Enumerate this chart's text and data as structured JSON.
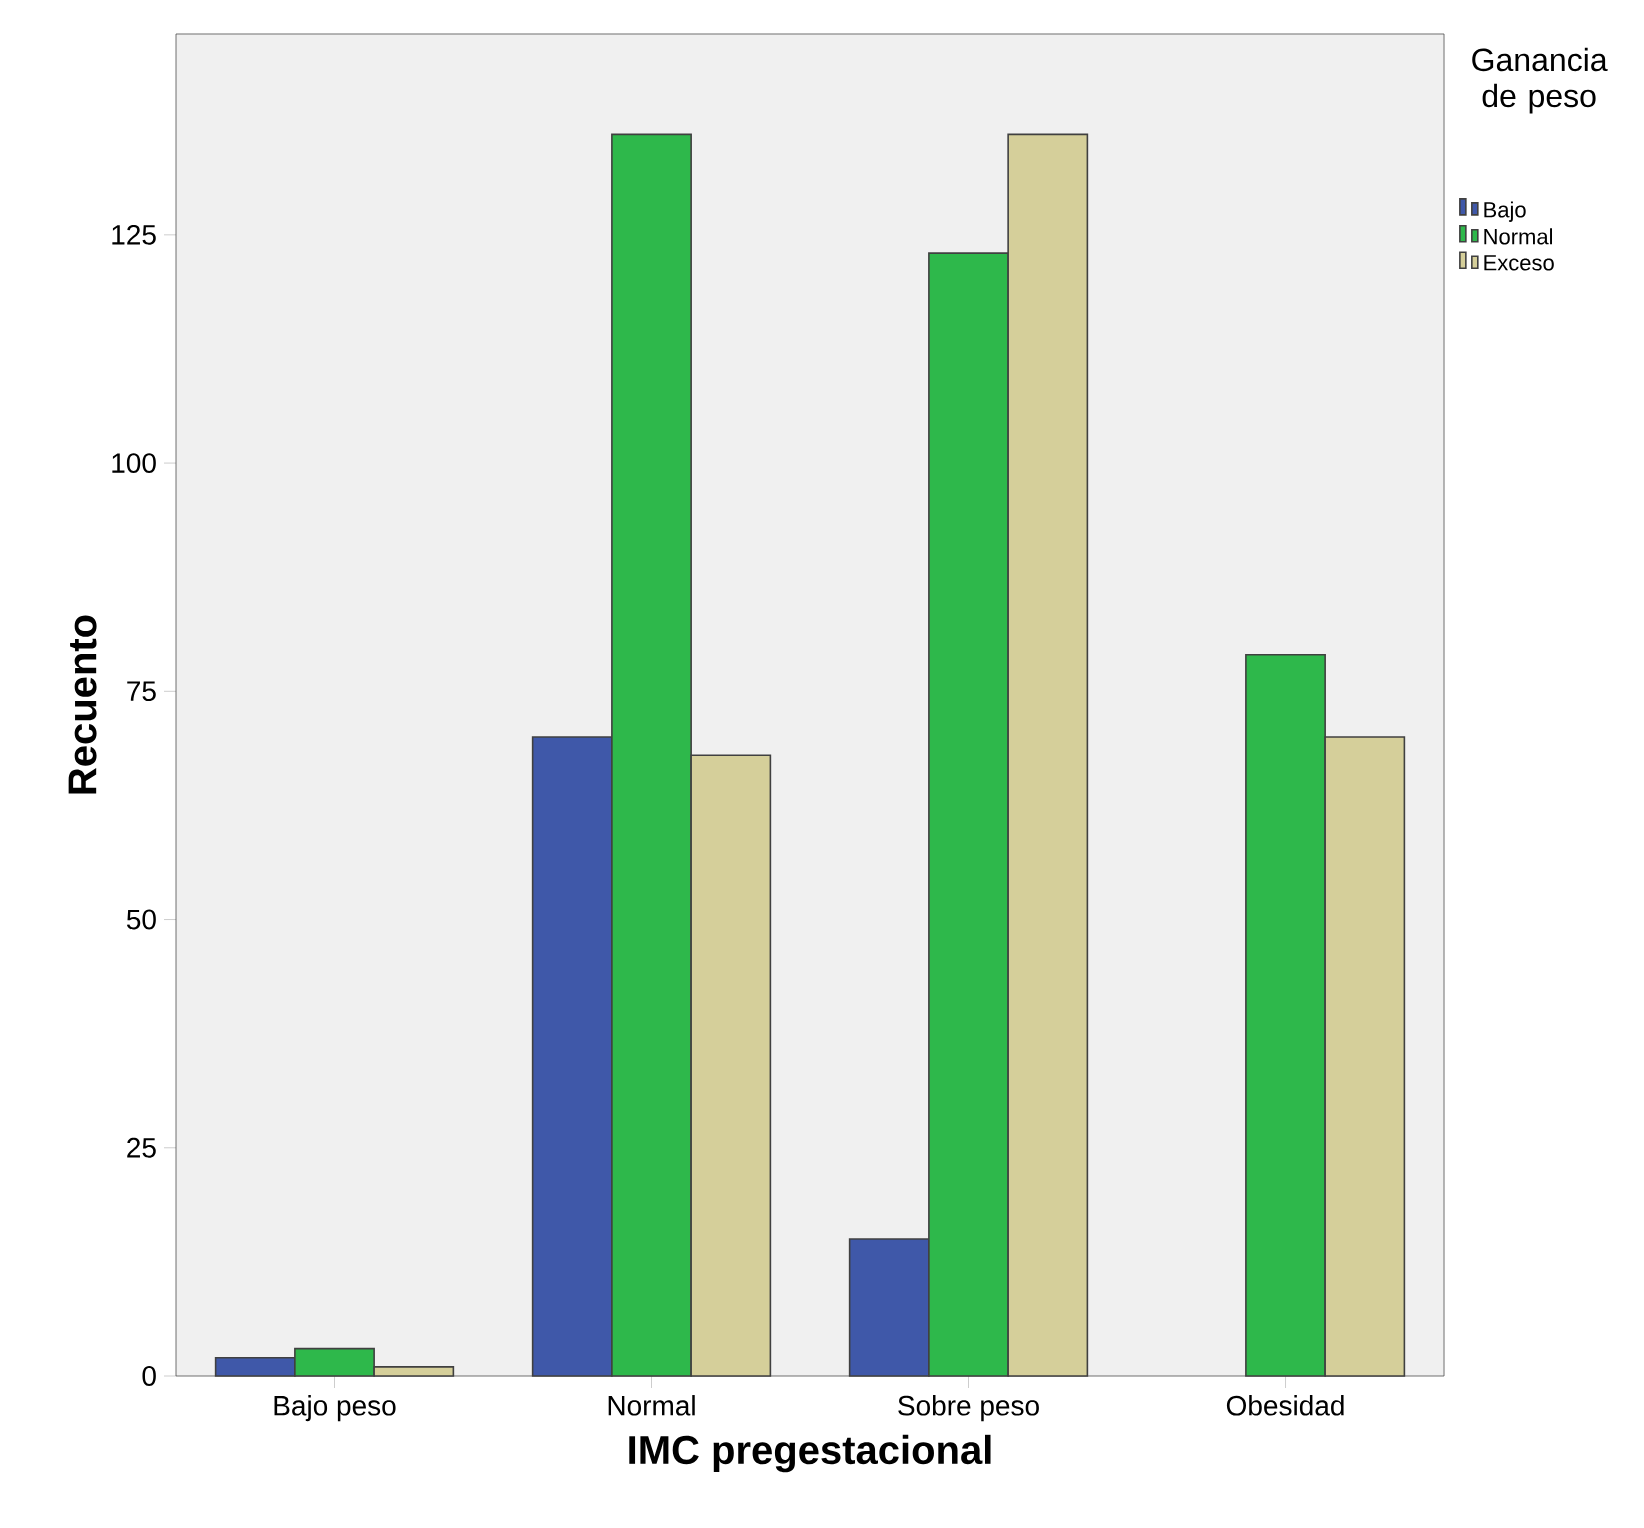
{
  "chart_data": {
    "type": "bar",
    "xlabel": "IMC pregestacional",
    "ylabel": "Recuento",
    "legend_title": "Ganancia de peso",
    "categories": [
      "Bajo peso",
      "Normal",
      "Sobre peso",
      "Obesidad"
    ],
    "series": [
      {
        "name": "Bajo",
        "color": "#3f58a9",
        "values": [
          2,
          70,
          15,
          null
        ]
      },
      {
        "name": "Normal",
        "color": "#2eb84b",
        "values": [
          3,
          136,
          123,
          79
        ]
      },
      {
        "name": "Exceso",
        "color": "#d5cf9a",
        "values": [
          1,
          68,
          136,
          70
        ]
      }
    ],
    "ylim": [
      0,
      147
    ],
    "yticks": [
      0,
      25,
      50,
      75,
      100,
      125
    ],
    "grid": false,
    "legend": "top right"
  }
}
